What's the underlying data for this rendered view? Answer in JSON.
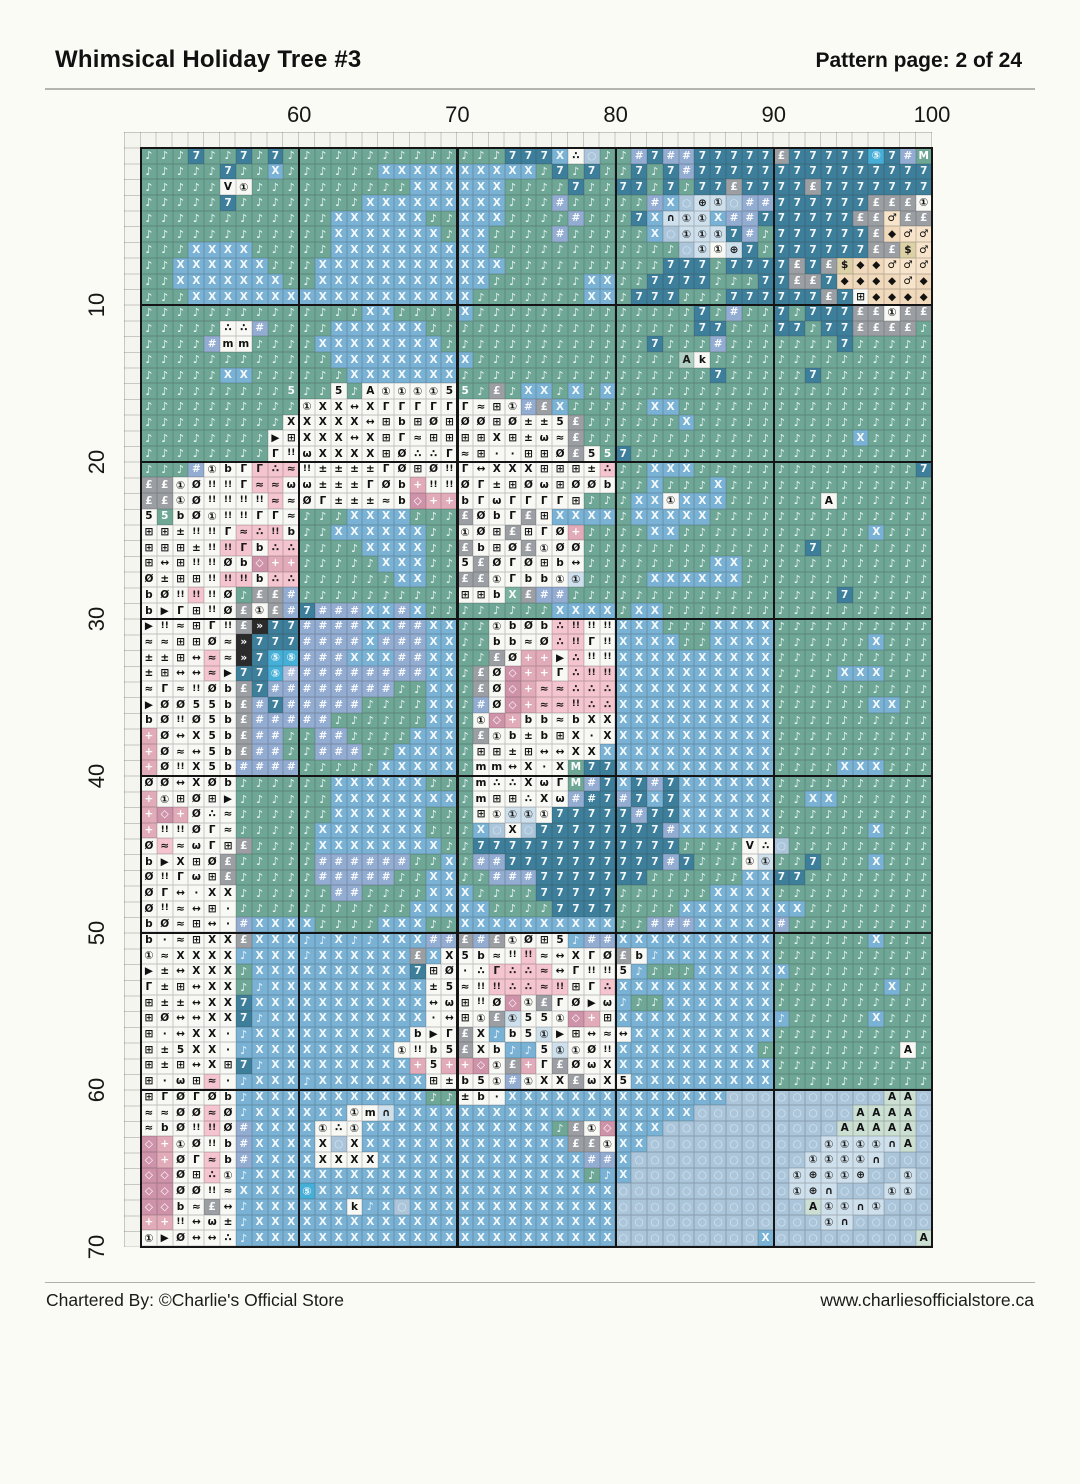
{
  "header": {
    "title": "Whimsical Holiday Tree #3",
    "page_label": "Pattern page: 2 of 24"
  },
  "footer": {
    "left": "Chartered By: ©Charlie's Official Store",
    "right": "www.charliesofficialstore.ca"
  },
  "chart": {
    "type": "cross-stitch-grid",
    "column_labels": [
      "60",
      "70",
      "80",
      "90",
      "100"
    ],
    "row_labels": [
      "10",
      "20",
      "30",
      "40",
      "50",
      "60",
      "70"
    ],
    "cols": 50,
    "rows": 70,
    "first_visible_column": 51,
    "first_visible_row": 1,
    "palette": {
      "t": {
        "bg": "#6FA796",
        "sym": "♪",
        "fg": "rgba(255,255,255,0.92)"
      },
      "u": {
        "bg": "#7BB1A1",
        "sym": "X",
        "fg": "rgba(255,255,255,0.92)"
      },
      "c": {
        "bg": "#79B2D4",
        "sym": "♪",
        "fg": "rgba(255,255,255,0.92)"
      },
      "b": {
        "bg": "#79B2D4",
        "sym": "X",
        "fg": "rgba(255,255,255,0.92)"
      },
      "n": {
        "bg": "#93ACD1",
        "sym": "#",
        "fg": "rgba(255,255,255,0.92)"
      },
      "N": {
        "bg": "#AEBEDC",
        "sym": "#",
        "fg": "rgba(255,255,255,0.92)"
      },
      "d": {
        "bg": "#3D7E9A",
        "sym": "7",
        "fg": "rgba(255,255,255,0.95)"
      },
      "D": {
        "bg": "#3D7E9A",
        "sym": "#",
        "fg": "rgba(255,255,255,0.95)"
      },
      "e": {
        "bg": "#45AFD8",
        "sym": "⑤",
        "fg": "rgba(255,255,255,0.95)"
      },
      "G": {
        "bg": "#9B9FA3",
        "sym": "£",
        "fg": "rgba(255,255,255,0.95)"
      },
      "k": {
        "bg": "#2B2B2B",
        "sym": "»",
        "fg": "#FFFFFF"
      },
      "M": {
        "bg": "#6FA796",
        "sym": "M",
        "fg": "#FFFFFF"
      },
      "5": {
        "bg": "#6FA796",
        "sym": "5",
        "fg": "#FFFFFF"
      },
      "a": {
        "bg": "#AFD0C2",
        "sym": "A",
        "fg": "#1A1A1A"
      },
      "p": {
        "bg": "#F4C5CE",
        "sym": "∴",
        "fg": "#1A1A1A"
      },
      "q": {
        "bg": "#F4C5CE",
        "sym": "!!",
        "fg": "#1A1A1A"
      },
      "r": {
        "bg": "#F4C5CE",
        "sym": "Γ",
        "fg": "#1A1A1A"
      },
      "j": {
        "bg": "#F4C5CE",
        "sym": "≈",
        "fg": "#1A1A1A"
      },
      "R": {
        "bg": "#CE93A9",
        "sym": "◇",
        "fg": "#FFFFFF"
      },
      "v": {
        "bg": "#E2ABBA",
        "sym": "+",
        "fg": "#FFFFFF"
      },
      "w": {
        "bg": "#F8F8F5",
        "sym": "X",
        "fg": "#111111"
      },
      "h": {
        "bg": "#F8F8F5",
        "sym": "↔",
        "fg": "#111111"
      },
      "x": {
        "bg": "#F8F8F5",
        "sym": "⊞",
        "fg": "#111111"
      },
      "o": {
        "bg": "#F8F8F5",
        "sym": "±",
        "fg": "#111111"
      },
      "i": {
        "bg": "#F8F8F5",
        "sym": "!!",
        "fg": "#111111"
      },
      "f": {
        "bg": "#F8F8F5",
        "sym": "Γ",
        "fg": "#111111"
      },
      "z": {
        "bg": "#F8F8F5",
        "sym": "Ø",
        "fg": "#111111"
      },
      "s": {
        "bg": "#F8F8F5",
        "sym": "≈",
        "fg": "#111111"
      },
      "m": {
        "bg": "#F8F8F5",
        "sym": "m",
        "fg": "#111111"
      },
      "W": {
        "bg": "#F8F8F5",
        "sym": "b",
        "fg": "#111111"
      },
      "9": {
        "bg": "#F8F8F5",
        "sym": "ω",
        "fg": "#111111"
      },
      "8": {
        "bg": "#F8F8F5",
        "sym": "▶",
        "fg": "#111111"
      },
      "!": {
        "bg": "#F8F8F5",
        "sym": "∴",
        "fg": "#111111"
      },
      "0": {
        "bg": "#F8F8F5",
        "sym": "·",
        "fg": "#111111"
      },
      "1": {
        "bg": "#F8F8F5",
        "sym": "①",
        "fg": "#111111"
      },
      "6": {
        "bg": "#F8F8F5",
        "sym": "5",
        "fg": "#111111"
      },
      "4": {
        "bg": "#F8F8F5",
        "sym": "A",
        "fg": "#111111"
      },
      "V": {
        "bg": "#F8F8F5",
        "sym": "V",
        "fg": "#111111"
      },
      "K": {
        "bg": "#F8F8F5",
        "sym": "k",
        "fg": "#111111"
      },
      "y": {
        "bg": "#DCD0A6",
        "sym": "$",
        "fg": "#111111"
      },
      "T": {
        "bg": "#F1DABB",
        "sym": "◆",
        "fg": "#111111"
      },
      "O": {
        "bg": "#F7E4CA",
        "sym": "♂",
        "fg": "#111111"
      },
      "A": {
        "bg": "#CBDFD3",
        "sym": "A",
        "fg": "#111111"
      },
      "C": {
        "bg": "#CFE0ED",
        "sym": "①",
        "fg": "#1A1A1A"
      },
      "E": {
        "bg": "#CFE0ED",
        "sym": "⊕",
        "fg": "#1A1A1A"
      },
      "U": {
        "bg": "#CFE0ED",
        "sym": "∩",
        "fg": "#1A1A1A"
      },
      "L": {
        "bg": "#ABC6DB",
        "sym": "○",
        "fg": "rgba(255,255,255,0.55)"
      }
    },
    "grid": [
      "tttdttdtdttttttttttttttdddb!Lttndnnddddd GdddddednM",
      "tttttdttbttttttbbbbbbbbbbtdtdttdtdnddddddddddddddd",
      "tttttV1ttttttttttbbbbbbttttdttddtdtddGddddGddddddd",
      "tttttdttttttttbbbbbbbbbtttntttttnbLECLnnddddddGGG1d",
      "ttttttttttttbbbbbbttbbbttttntttdbUCCbnnddddddGGOGG",
      "ttttttttttttbbbbbbbtbbttttntttttbLCCCdntddddddGTOOG",
      "tttbbbbtttttbbbbbbbbbbttttttttttttLC1EdtddddddGGyOT1",
      "ttbbbbbbtttbbbbbbbbbbbbttttttttttdddtddddGdGyTTOOO",
      "ttbbbbbbbttbbbbbbbbbbbttttttbbttddddtttddGGdTTTTOT",
      "tttbbbbbbbbbbbbbbbbbbtttttttbbtdddtttddddddGdxTTTTT",
      "ttttttttttttttbbttttbtttttttttttttтdtnttdtdddGG1GGG",
      "ttttt!!nttttbbbbbbtttttttttttttttttddtttddtddGGGGt",
      "ttttnmmttttbbbbbbbbtttttttttttttdtttntttttttdtttttt",
      "ttttttttttttbbbbbbbbbtttttttttttttaKttttttttttttttt",
      "tttttbbttttttbbbbbbbttttttttttttttttdtttttdttttttt",
      "ttttttttt5tt6t4111165tGtbbtbtbtttttttttttttttttttt",
      "tttttttttt1wwhwffffffsx1nGbtttttbbtttttttttttttttt",
      "ttttttttтwwwwwhxWxzxzzxzoo6Gttttttbttttttttttttttt",
      "tttttttt8xwwwhwxfsxxxxwxo9sGtttttttttttttttttbttt",
      "ttttttttfi9wwwwxz!!fsx00xxzG65dttttttttttttttttttt",
      "tttn1Wfrpjioooofzxzifhwwwxxxopttbbbttttttttttttttdt",
      "GG1ziifjj99ooofzWviizfoxz9xzzWttbtttbttttttttttttt",
      "GG1ziiiijszfooosWRvvWf9ffffxtttbb1bbbtttttt4tttttt",
      "65Wz1iiffstttbbbbtttGzWfGxbbbbtbbbbbttttttttttttttt",
      "xxoiifjpqWttbbbbbbtt1zxGxfzvttttbbttttttttttttbttt",
      "xxxoiqrWppttttbbbbttGWxzG1zztttttttttttttтdttttttt",
      "xhxiizWRvvtttttbbbtt6GzfzxWhttttttttbbtttttttttttt",
      "zoxxiqqWppttttttbbttGG1fWW1Cttttbbbbbbtttttttttttt",
      "WziqizIGGnttttttttttxxWuGnntttttttttttttttttdttttt",
      "W8fxizG1Gndnnnbbnbttttttttbbbbtbbttttttttttttttttt",
      "8isxfiGkddnnnnbbnnbbtt1WzWpqiibbbtttbbbbtttttttttt",
      "ssxxzskdddnnnnbnnnbbttWWszpqfibbbbttbbbbttttttbttt",
      "ooxhjskdeennnbbbnnbbttGzvv8piibbbbbbbbbbtttttttttt",
      "oxhhj8ddeNnnnnnnnnbbtGzRvvfpqqbbbbbbbbbbttttbbbttt",
      "sfsizWGdnnnnnnnnttbbtGzRvjjpppbbbbbbbbbbtttttttttt",
      "8zz66WGndnnnnnttttbbtnzRvjjqppbbbbbbbbbbttttttbbtt",
      "Wziz6WGnnnnnttttttbbt1RvWWsWwwbbbbbbbbbbtttttttttt",
      "vzhw6WGnnttnnttttbbbtG1WoWxw0wbbbbbbbbbbtttttttttt",
      "vzsh6WGnnttnnnttbbbbtxxoxhhwwbbbbbbbbbbbtttttttttt",
      "vziw6Wnnnntttttbbbbbtmmhw0wMddbbbbbbbbbbttttbbbttt",
      "zzhwzWttttttbbbbbbtttm!!w9fMndbdndbbbbbbtttttttttt",
      "v1xzx8ttttttbbbbbbbbtmxx!w9nDdndbdbbbbbbttbbtttttt",
      "vRvz!sttttttbbbbbbtttx1CC1dddddnddbbbbbbtttttttttt",
      "viizfstttttbbbbbbbtttbLwLddddddddnbbbbbbttttttbttt",
      "zjs9fxGttttbbbbbbbbttdddddddddddddttttV!Lttttttttt",
      "W8wxzGtttttnnnnnnttbtnnddddddddddndttt1Cttdtttbttt",
      "zif9xGtttttnnnnnttbbttnnndddddddttttttbbddтttttttt",
      "zfh0wwttttttnnttttbbbttttdddddttttttbbbbtttttttttt",
      "zishx0tttttttttttbbbbbttttddddttttbbbbbbbbтtttttтt",
      "Wzsxh0nbbbbttttbbbttbbbbbbbbbbttnnnbbbbbnttttttttt",
      "W0sxwwGbbbccbccbbbnnGnG1zx6cnnbbbbbbbbbbttttttbttt",
      "1swwwwcbbbcbbbbbbGbw6WsiqshwfzGWcbbbbbbbtttttttttt",
      "8ohwwwtbbbbbbbbbbdxz0!rppjhfii6ctttbbbbbbттtttttтt",
      "foxhwwtcbbbbbbbbbbo6siqppjqxfpbbbbbbbbbbtttttttbtt",
      "xoohwwdbbbbbbbbbbbh9xizR1Gfz89cttbbbbbbbтtttttтttt",
      "xzhhwwdcbbbbbbbbbb0hx1GC661Rvxbbbbbbbbbbctttttbttt",
      "x0hww0cbbbbbbbbbbW8fGwcW6C8xhshbbbbbbbbbтtтttttttt",
      "xo6ww0cbbbbbbbbb1iW6GwWcc6C1zibbbbbbbbbттттttttт4",
      "xoxhwxdcbbbbbbbbbv6vvR1GvfGz9wbbbbbbbbbbтtтtttтttt",
      "x09xj0cbbbcbbbbbbbxoW61n1wwG9w6bbbbbbbbbтttтtттttt",
      "xfzfzWcbbbbbbbbbbbttoW0bbbbbbbbbbbbbbLLLLLLLLLLAAL",
      "sszzjzcbbbbbb1mUbbbbbbbbbbbbbbbbbbbLLLLLLLLLLAAAAL",
      "sWziqznbbbb1!1bbbbbbbbbbbbтG1RbbbLLLLLLLLLLLAAAAAL",
      "Rv1ziWnbbbbwLwbbbbbbbbbbbbbGG1bbLLLLLLLLLLLCCCCUAL",
      "RvzfjWnbbbbwwwwbbbbbbbbbbbbbnnbLLLLLLLLLLLCCCCULLL",
      "RRzxp1cbbbbbbbbbbbbbbbbbbbbbтcbLLLLLLLLLLCECCELLCL",
      "RRzzisbbbbebbbbbbbbbbbbbbbbbbbLLLLLLLLLLLCEULLLCCL",
      "RRWsGhcbbbbbbKcbLbbbbbbbbbbbbbLLLLLLLLLLLLACCUCLLL",
      "vvih9ocbbbbbbbbbbbbbbbbbbbbbbbLLLLLLLLLLLLLCULLLLL",
      "18zhh!cbbbbbbbbbbbbbbbbbbbbbbbLLLLLLLLLbLLLLLLLLLA"
    ]
  }
}
